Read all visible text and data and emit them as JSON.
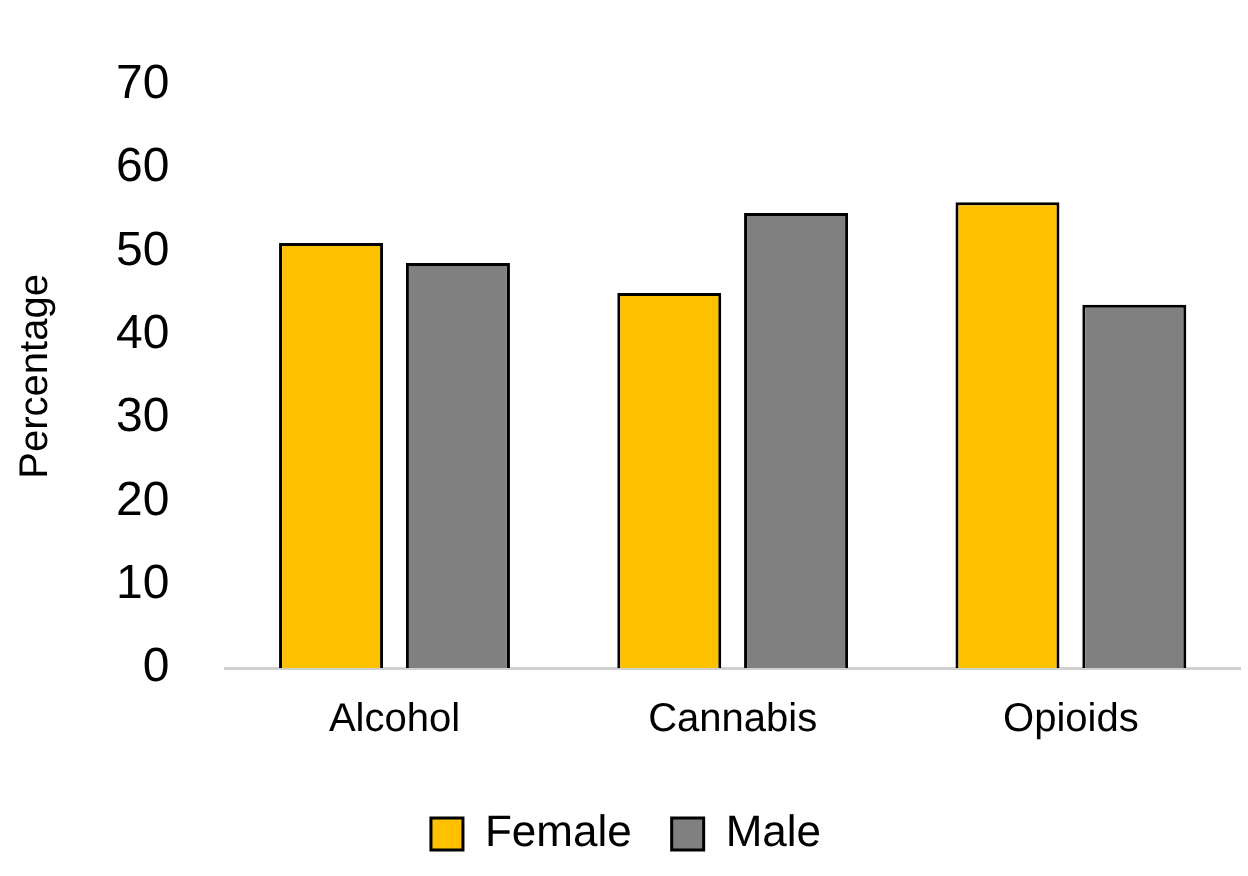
{
  "chart_data": {
    "type": "bar",
    "ylabel": "Percentage",
    "categories": [
      "Alcohol",
      "Cannabis",
      "Opioids"
    ],
    "series": [
      {
        "name": "Female",
        "color": "#ffc000",
        "values": [
          51,
          45,
          55.9
        ]
      },
      {
        "name": "Male",
        "color": "#808080",
        "values": [
          48.6,
          54.6,
          43.6
        ]
      }
    ],
    "ylim": [
      0,
      70
    ],
    "yticks": [
      0,
      10,
      20,
      30,
      40,
      50,
      60,
      70
    ],
    "grid": false,
    "legend": "bottom"
  }
}
